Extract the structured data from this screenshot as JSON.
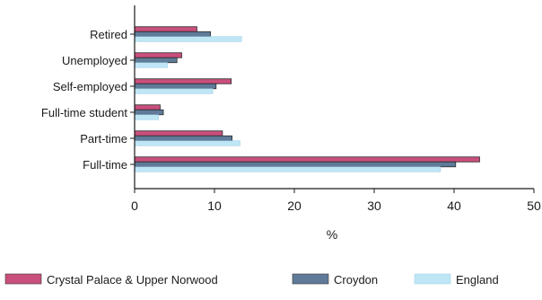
{
  "chart_data": {
    "type": "bar",
    "orientation": "horizontal",
    "categories": [
      "Retired",
      "Unemployed",
      "Self-employed",
      "Full-time student",
      "Part-time",
      "Full-time"
    ],
    "series": [
      {
        "name": "Crystal Palace & Upper Norwood",
        "color": "#c94f7c",
        "values": [
          7.8,
          5.9,
          12.1,
          3.2,
          11.0,
          43.2
        ]
      },
      {
        "name": "Croydon",
        "color": "#5f7b99",
        "values": [
          9.5,
          5.3,
          10.2,
          3.6,
          12.2,
          40.2
        ]
      },
      {
        "name": "England",
        "color": "#bfe6f5",
        "values": [
          13.4,
          4.1,
          9.8,
          3.0,
          13.2,
          38.3
        ]
      }
    ],
    "title": "",
    "xlabel": "%",
    "ylabel": "",
    "xlim": [
      0,
      50
    ],
    "xticks": [
      0,
      10,
      20,
      30,
      40,
      50
    ],
    "grid": false,
    "legend_position": "bottom"
  }
}
